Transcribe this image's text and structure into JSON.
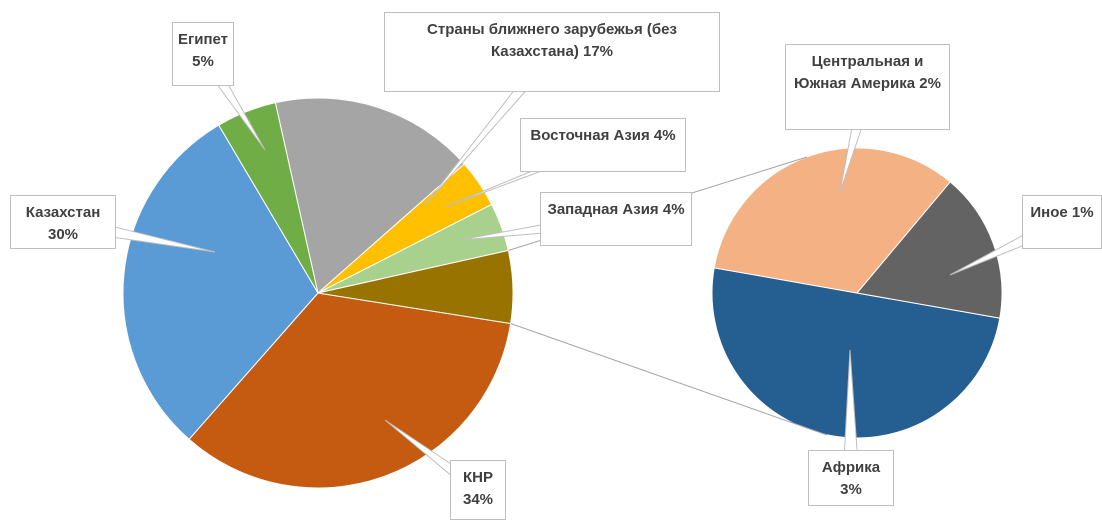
{
  "chart_data": {
    "type": "pie",
    "categories": [
      "КНР",
      "Казахстан",
      "Египет",
      "Страны ближнего зарубежья (без Казахстана)",
      "Восточная Азия",
      "Западная Азия"
    ],
    "values": [
      34,
      30,
      5,
      17,
      4,
      4
    ],
    "value_labels": [
      "34%",
      "30%",
      "5%",
      "17%",
      "4%",
      "4%"
    ],
    "colors": [
      "#c55a11",
      "#5b9bd5",
      "#70ad47",
      "#a5a5a5",
      "#ffc000",
      "#a9d18e"
    ],
    "other_color": "#997300",
    "secondary": {
      "categories": [
        "Африка",
        "Центральная и Южная Америка",
        "Иное"
      ],
      "values": [
        3,
        2,
        1
      ],
      "value_labels": [
        "3%",
        "2%",
        "1%"
      ],
      "colors": [
        "#255e91",
        "#f4b183",
        "#636363"
      ]
    }
  }
}
